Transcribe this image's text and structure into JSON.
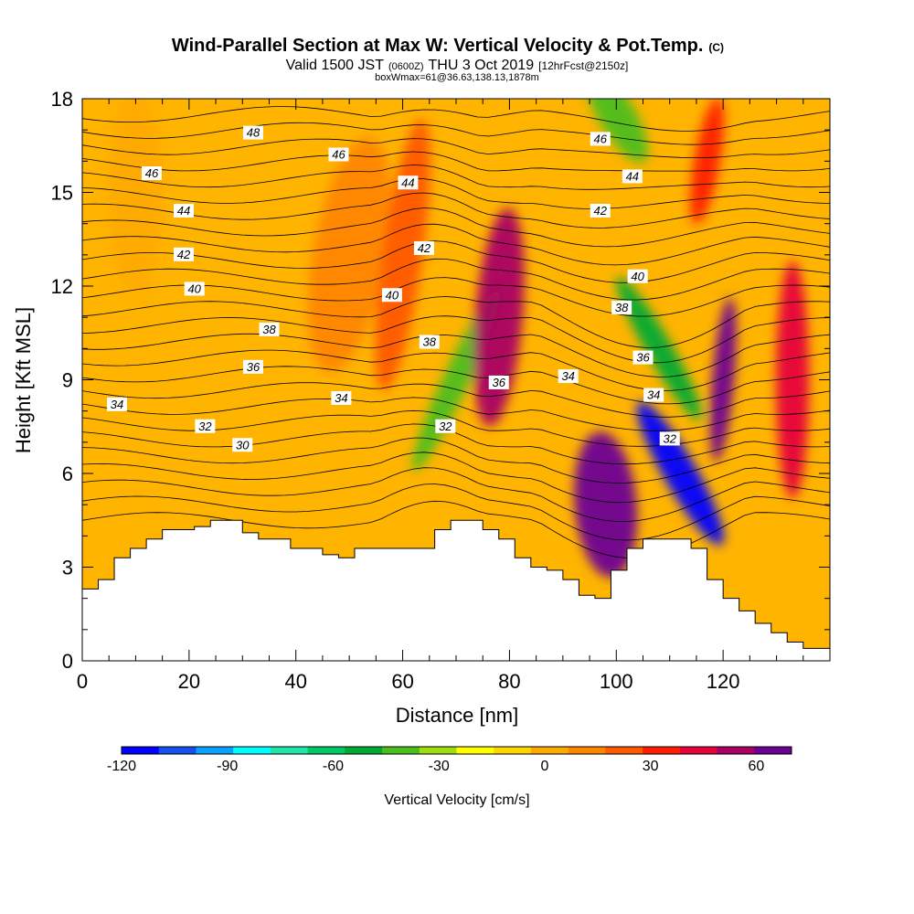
{
  "chart_data": {
    "type": "heatmap",
    "title": "Wind-Parallel Section at Max W: Vertical Velocity & Pot.Temp.",
    "title_mark": "(C)",
    "subtitle_parts": [
      "Valid 1500 JST",
      "(0600Z)",
      "THU 3 Oct 2019",
      "[12hrFcst@2150z]"
    ],
    "subtitle2": "boxWmax=61@36.63,138.13,1878m",
    "xlabel": "Distance [nm]",
    "ylabel": "Height [Kft MSL]",
    "xlim": [
      0,
      140
    ],
    "ylim": [
      0,
      18
    ],
    "x_ticks": [
      0,
      20,
      40,
      60,
      80,
      100,
      120
    ],
    "y_ticks": [
      0,
      3,
      6,
      9,
      12,
      15,
      18
    ],
    "colorbar": {
      "label": "Vertical Velocity [cm/s]",
      "range": [
        -120,
        70
      ],
      "ticks": [
        -120,
        -90,
        -60,
        -30,
        0,
        30,
        60
      ],
      "colors": [
        "#0000ff",
        "#1450f0",
        "#0aa0ff",
        "#00ffff",
        "#1ee6aa",
        "#00c864",
        "#00aa32",
        "#4bbe1e",
        "#a0dc0f",
        "#ffff00",
        "#ffd700",
        "#ffaa00",
        "#ff8700",
        "#ff5a00",
        "#ff1e00",
        "#e6003c",
        "#aa0064",
        "#6e0096"
      ]
    },
    "series": [
      {
        "name": "Vertical Velocity",
        "unit": "cm/s",
        "features": [
          {
            "x": 10,
            "z": 15,
            "w": 5
          },
          {
            "x": 50,
            "z": 13,
            "w": 14
          },
          {
            "x": 60,
            "z": 13,
            "w": 26
          },
          {
            "x": 70,
            "z": 9,
            "w": -45
          },
          {
            "x": 78,
            "z": 11,
            "w": 55
          },
          {
            "x": 98,
            "z": 5,
            "w": 68
          },
          {
            "x": 112,
            "z": 6,
            "w": -115
          },
          {
            "x": 108,
            "z": 10,
            "w": -50
          },
          {
            "x": 120,
            "z": 9,
            "w": 70
          },
          {
            "x": 133,
            "z": 9,
            "w": 48
          },
          {
            "x": 100,
            "z": 17.5,
            "w": -40
          },
          {
            "x": 117,
            "z": 16,
            "w": 30
          }
        ]
      },
      {
        "name": "Pot.Temp.",
        "unit": "",
        "contour_labels": [
          {
            "text": "48",
            "x": 32,
            "z": 16.9
          },
          {
            "text": "46",
            "x": 13,
            "z": 15.6
          },
          {
            "text": "44",
            "x": 19,
            "z": 14.4
          },
          {
            "text": "42",
            "x": 19,
            "z": 13.0
          },
          {
            "text": "40",
            "x": 21,
            "z": 11.9
          },
          {
            "text": "38",
            "x": 35,
            "z": 10.6
          },
          {
            "text": "36",
            "x": 32,
            "z": 9.4
          },
          {
            "text": "34",
            "x": 6.5,
            "z": 8.2
          },
          {
            "text": "32",
            "x": 23,
            "z": 7.5
          },
          {
            "text": "30",
            "x": 30,
            "z": 6.9
          },
          {
            "text": "46",
            "x": 48,
            "z": 16.2
          },
          {
            "text": "44",
            "x": 61,
            "z": 15.3
          },
          {
            "text": "42",
            "x": 64,
            "z": 13.2
          },
          {
            "text": "40",
            "x": 58,
            "z": 11.7
          },
          {
            "text": "38",
            "x": 65,
            "z": 10.2
          },
          {
            "text": "34",
            "x": 48.5,
            "z": 8.4
          },
          {
            "text": "32",
            "x": 68,
            "z": 7.5
          },
          {
            "text": "36",
            "x": 78,
            "z": 8.9
          },
          {
            "text": "34",
            "x": 91,
            "z": 9.1
          },
          {
            "text": "46",
            "x": 97,
            "z": 16.7
          },
          {
            "text": "44",
            "x": 103,
            "z": 15.5
          },
          {
            "text": "42",
            "x": 97,
            "z": 14.4
          },
          {
            "text": "40",
            "x": 104,
            "z": 12.3
          },
          {
            "text": "38",
            "x": 101,
            "z": 11.3
          },
          {
            "text": "36",
            "x": 105,
            "z": 9.7
          },
          {
            "text": "34",
            "x": 107,
            "z": 8.5
          },
          {
            "text": "32",
            "x": 110,
            "z": 7.1
          }
        ]
      }
    ],
    "terrain": {
      "unit": "Kft MSL",
      "x": [
        0,
        3,
        6,
        9,
        12,
        15,
        18,
        21,
        24,
        27,
        30,
        33,
        36,
        39,
        42,
        45,
        48,
        51,
        54,
        57,
        60,
        63,
        66,
        69,
        72,
        75,
        78,
        81,
        84,
        87,
        90,
        93,
        96,
        99,
        102,
        105,
        108,
        111,
        114,
        117,
        120,
        123,
        126,
        129,
        132,
        135,
        138,
        140
      ],
      "z": [
        2.3,
        2.6,
        3.3,
        3.6,
        3.9,
        4.2,
        4.2,
        4.3,
        4.5,
        4.5,
        4.1,
        3.9,
        3.9,
        3.6,
        3.6,
        3.4,
        3.3,
        3.6,
        3.6,
        3.6,
        3.6,
        3.6,
        4.2,
        4.5,
        4.5,
        4.2,
        3.9,
        3.3,
        3.0,
        2.9,
        2.6,
        2.1,
        2.0,
        2.9,
        3.6,
        3.9,
        3.9,
        3.9,
        3.6,
        2.6,
        2.0,
        1.6,
        1.2,
        0.9,
        0.6,
        0.4,
        0.4,
        0.4
      ]
    }
  }
}
